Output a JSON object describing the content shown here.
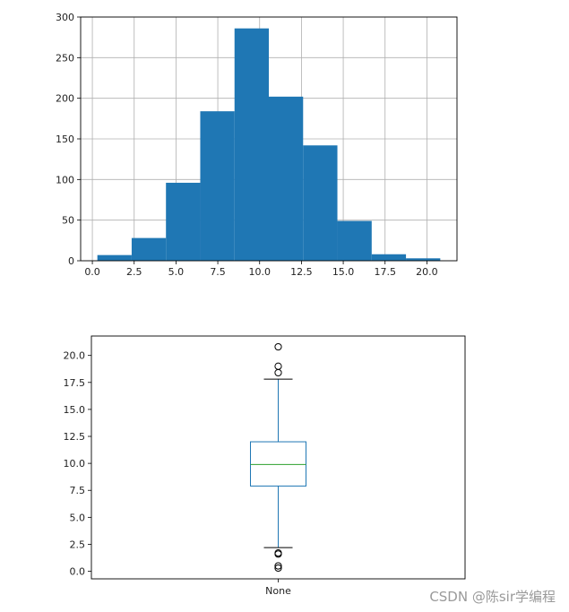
{
  "chart_data": [
    {
      "type": "bar",
      "subtype": "histogram",
      "xlim": [
        -0.7,
        21.8
      ],
      "ylim": [
        0,
        300
      ],
      "grid": true,
      "color": "#1f77b4",
      "xticks": [
        0.0,
        2.5,
        5.0,
        7.5,
        10.0,
        12.5,
        15.0,
        17.5,
        20.0
      ],
      "xtick_labels": [
        "0.0",
        "2.5",
        "5.0",
        "7.5",
        "10.0",
        "12.5",
        "15.0",
        "17.5",
        "20.0"
      ],
      "yticks": [
        0,
        50,
        100,
        150,
        200,
        250,
        300
      ],
      "ytick_labels": [
        "0",
        "50",
        "100",
        "150",
        "200",
        "250",
        "300"
      ],
      "bins": [
        {
          "x0": 0.3,
          "x1": 2.35,
          "count": 7
        },
        {
          "x0": 2.35,
          "x1": 4.4,
          "count": 28
        },
        {
          "x0": 4.4,
          "x1": 6.45,
          "count": 96
        },
        {
          "x0": 6.45,
          "x1": 8.5,
          "count": 184
        },
        {
          "x0": 8.5,
          "x1": 10.55,
          "count": 286
        },
        {
          "x0": 10.55,
          "x1": 12.6,
          "count": 202
        },
        {
          "x0": 12.6,
          "x1": 14.65,
          "count": 142
        },
        {
          "x0": 14.65,
          "x1": 16.7,
          "count": 49
        },
        {
          "x0": 16.7,
          "x1": 18.75,
          "count": 8
        },
        {
          "x0": 18.75,
          "x1": 20.8,
          "count": 3
        }
      ]
    },
    {
      "type": "box",
      "categories": [
        "None"
      ],
      "ylim": [
        -0.7,
        21.8
      ],
      "grid": false,
      "yticks": [
        0.0,
        2.5,
        5.0,
        7.5,
        10.0,
        12.5,
        15.0,
        17.5,
        20.0
      ],
      "ytick_labels": [
        "0.0",
        "2.5",
        "5.0",
        "7.5",
        "10.0",
        "12.5",
        "15.0",
        "17.5",
        "20.0"
      ],
      "box": {
        "q1": 7.9,
        "median": 9.9,
        "q3": 12.0,
        "whisker_low": 2.2,
        "whisker_high": 17.8
      },
      "outliers": [
        20.8,
        19.0,
        18.4,
        1.7,
        1.6,
        0.5,
        0.3
      ],
      "box_color": "#1f77b4",
      "median_color": "#2ca02c"
    }
  ],
  "watermark": "CSDN @陈sir学编程"
}
